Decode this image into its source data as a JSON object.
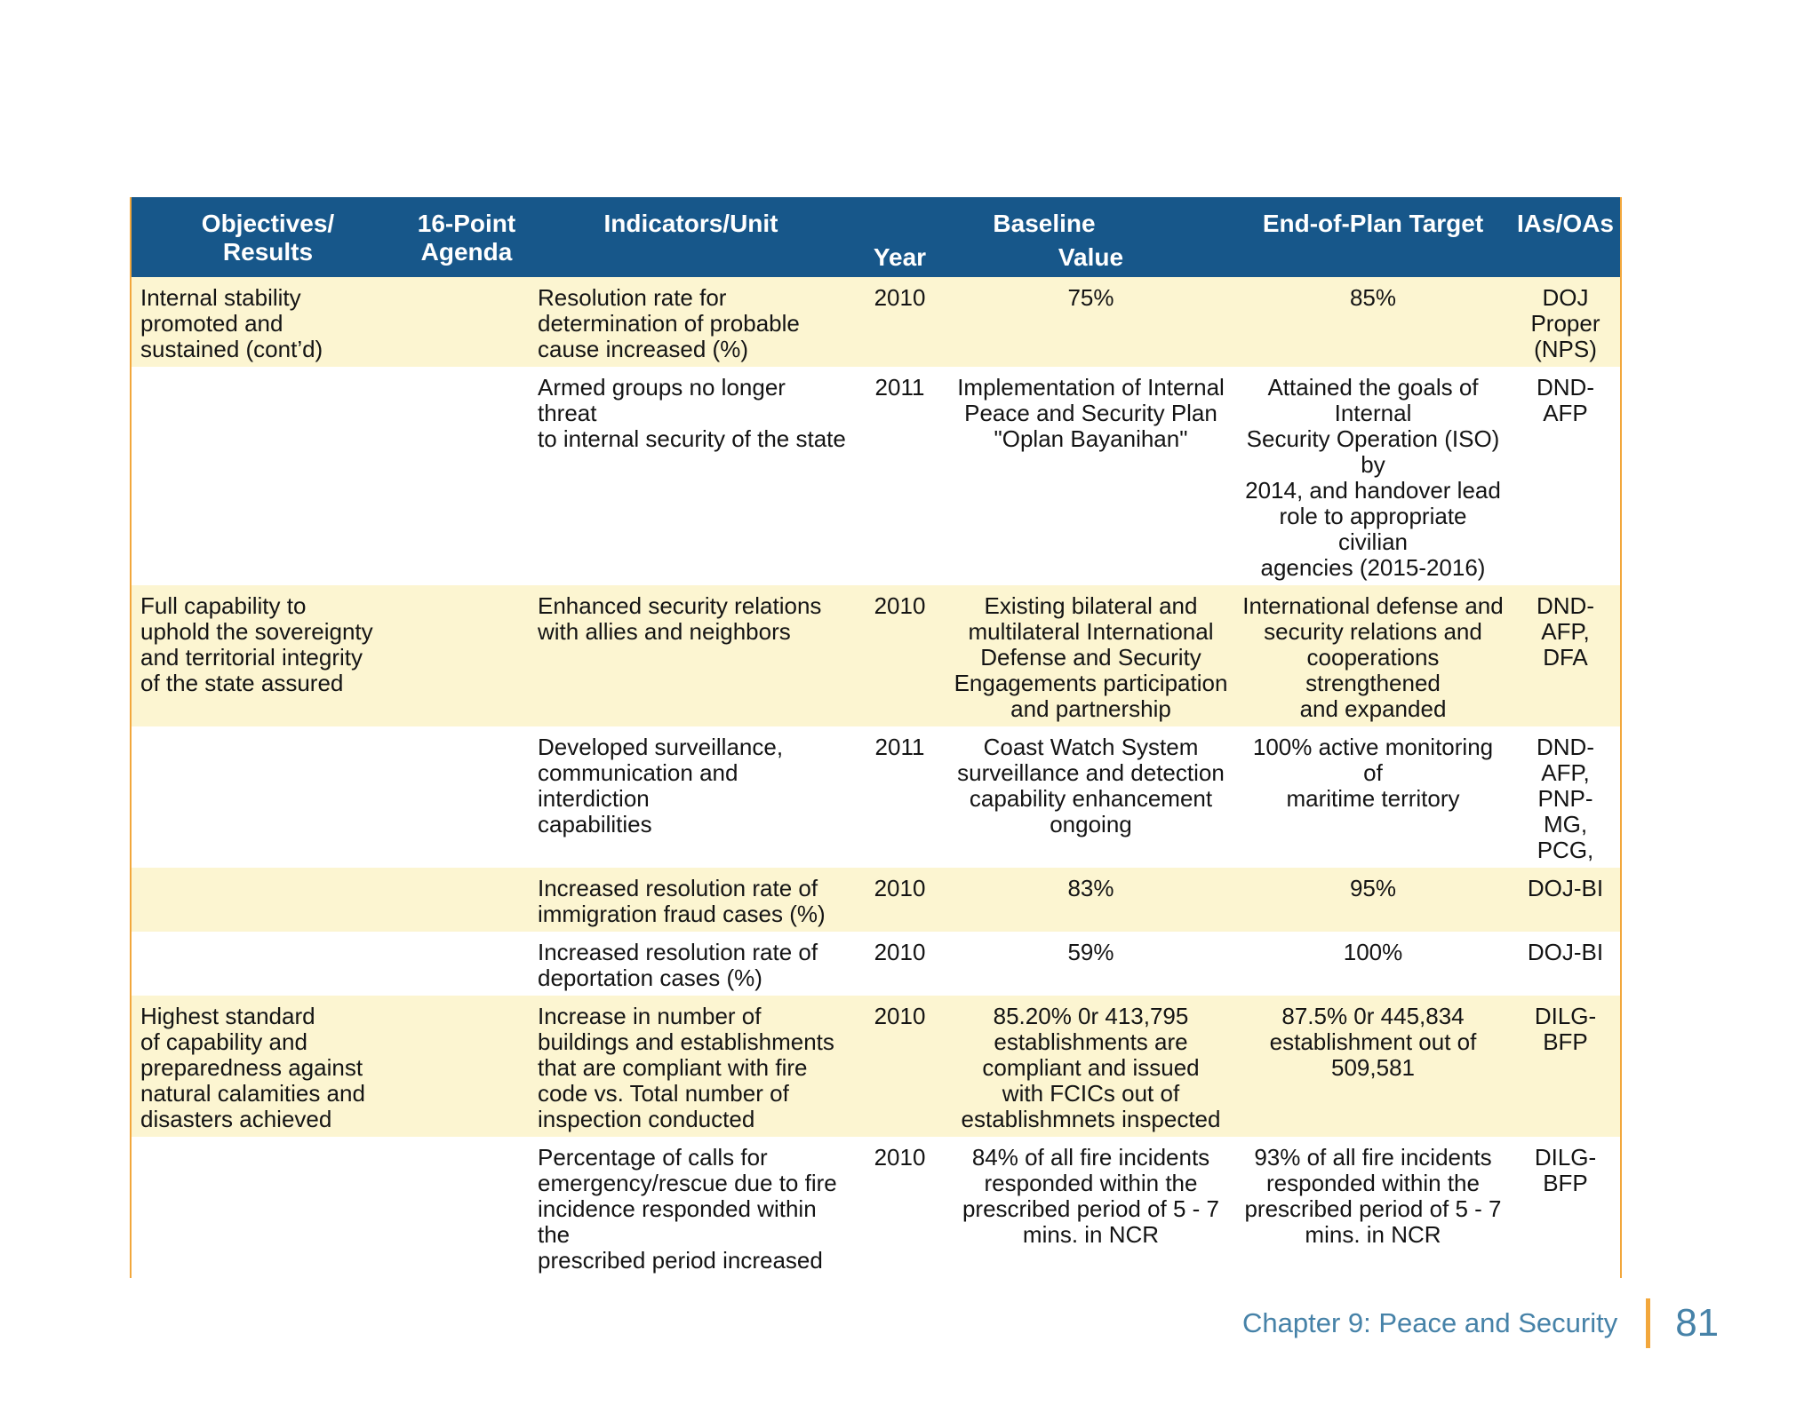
{
  "colors": {
    "header_bg": "#17578A",
    "row_cream": "#FCF5D1",
    "border_orange": "#F2A73C",
    "footer_blue": "#4682A8"
  },
  "table": {
    "header": {
      "objectives": "Objectives/\nResults",
      "agenda": "16-Point\nAgenda",
      "indicators": "Indicators/Unit",
      "baseline": "Baseline",
      "year": "Year",
      "value": "Value",
      "target": "End-of-Plan Target",
      "ias": "IAs/OAs"
    },
    "rows": [
      {
        "objectives": "Internal stability\npromoted and\nsustained (cont’d)",
        "agenda": "",
        "indicator": "Resolution rate for\ndetermination of probable\ncause increased (%)",
        "year": "2010",
        "value": "75%",
        "target": "85%",
        "ias": "DOJ\nProper\n(NPS)"
      },
      {
        "objectives": "",
        "agenda": "",
        "indicator": "Armed groups no longer threat\nto internal security of the state",
        "year": "2011",
        "value": "Implementation of Internal\nPeace and Security Plan\n\"Oplan Bayanihan\"",
        "target": "Attained the goals of Internal\nSecurity Operation (ISO) by\n2014, and handover lead\nrole to appropriate civilian\nagencies (2015-2016)",
        "ias": "DND-AFP"
      },
      {
        "objectives": "Full capability to\nuphold the sovereignty\nand territorial integrity\nof the state assured",
        "agenda": "",
        "indicator": "Enhanced security relations\nwith allies and neighbors",
        "year": "2010",
        "value": "Existing bilateral and\nmultilateral International\nDefense and Security\nEngagements participation\nand partnership",
        "target": "International defense and\nsecurity relations and\ncooperations strengthened\nand expanded",
        "ias": "DND-AFP,\nDFA"
      },
      {
        "objectives": "",
        "agenda": "",
        "indicator": "Developed surveillance,\ncommunication and interdiction\ncapabilities",
        "year": "2011",
        "value": "Coast Watch System\nsurveillance and detection\ncapability enhancement\nongoing",
        "target": "100% active monitoring of\nmaritime territory",
        "ias": "DND-AFP,\nPNP-MG,\nPCG,"
      },
      {
        "objectives": "",
        "agenda": "",
        "indicator": "Increased resolution rate of\nimmigration fraud cases (%)",
        "year": "2010",
        "value": "83%",
        "target": "95%",
        "ias": "DOJ-BI"
      },
      {
        "objectives": "",
        "agenda": "",
        "indicator": "Increased resolution rate of\ndeportation cases (%)",
        "year": "2010",
        "value": "59%",
        "target": "100%",
        "ias": "DOJ-BI"
      },
      {
        "objectives": "Highest standard\nof capability and\npreparedness against\nnatural calamities and\ndisasters achieved",
        "agenda": "",
        "indicator": "Increase in number of\nbuildings and establishments\nthat are compliant with fire\ncode vs. Total number of\ninspection conducted",
        "year": "2010",
        "value": "85.20% 0r 413,795\nestablishments are\ncompliant and issued\nwith FCICs out of\nestablishmnets inspected",
        "target": "87.5% 0r 445,834\nestablishment out of 509,581",
        "ias": "DILG-BFP"
      },
      {
        "objectives": "",
        "agenda": "",
        "indicator": "Percentage of calls for\nemergency/rescue due to fire\nincidence responded within the\nprescribed period increased",
        "year": "2010",
        "value": "84% of all fire incidents\nresponded within the\nprescribed period of 5 - 7\nmins. in NCR",
        "target": "93% of all fire incidents\nresponded within the\nprescribed period of 5 - 7\nmins. in NCR",
        "ias": "DILG-BFP"
      }
    ]
  },
  "footer": {
    "chapter": "Chapter 9: Peace and Security",
    "page_number": "81"
  }
}
